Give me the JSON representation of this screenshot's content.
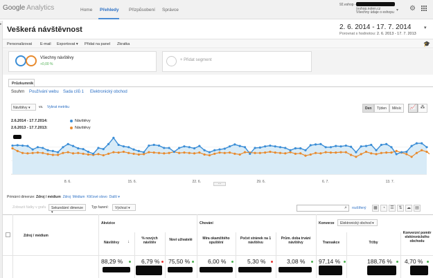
{
  "topbar": {
    "logo_g": "Google",
    "logo_a": "Analytics",
    "nav": [
      "Home",
      "Přehledy",
      "Přizpůsobení",
      "Správce"
    ],
    "account_email": "92.eshop -",
    "account_site": "(eshop.nolen.cz",
    "account_sub": "Všechny údaje o eshopu"
  },
  "header": {
    "title": "Veškerá návštěvnost",
    "date_range": "2. 6. 2014 - 17. 7. 2014",
    "compare_label": "Porovnat s hodnotou:",
    "compare_range": "2. 6. 2013 - 17. 7. 2013"
  },
  "toolbar": [
    "Personalizovat",
    "E-mail",
    "Exportovat ▾",
    "Přidat na panel",
    "Zkratka"
  ],
  "segments": {
    "seg1_label": "Všechny návštěvy",
    "seg1_sub": "+0,00 %",
    "seg2_label": "+ Přidat segment"
  },
  "explorer": {
    "tab": "Průzkumník",
    "subtabs": [
      "Souhrn",
      "Používání webu",
      "Sada cílů 1",
      "Elektronický obchod"
    ]
  },
  "chart_controls": {
    "metric": "Návštěvy",
    "vs": "vs.",
    "select_metric": "Vybrat metriku",
    "granularity": [
      "Den",
      "Týden",
      "Měsíc"
    ]
  },
  "legend": [
    {
      "date": "2.6.2014 - 17.7.2014:",
      "label": "Návštěvy",
      "color": "#3a8dd6"
    },
    {
      "date": "2.6.2013 - 17.7.2013:",
      "label": "Návštěvy",
      "color": "#e88a2d"
    }
  ],
  "chart_data": {
    "type": "line",
    "x_tick_labels": [
      "8. 6.",
      "15. 6.",
      "22. 6.",
      "29. 6.",
      "6. 7.",
      "13. 7."
    ],
    "series": [
      {
        "name": "Návštěvy",
        "color": "#3a8dd6",
        "values": [
          0.74,
          0.75,
          0.74,
          0.73,
          0.64,
          0.7,
          0.68,
          0.62,
          0.6,
          0.57,
          0.7,
          0.78,
          0.73,
          0.67,
          0.65,
          0.58,
          0.53,
          0.68,
          0.65,
          0.78,
          0.94,
          0.76,
          0.72,
          0.7,
          0.64,
          0.6,
          0.57,
          0.74,
          0.76,
          0.74,
          0.68,
          0.68,
          0.58,
          0.68,
          0.72,
          0.7,
          0.67,
          0.73,
          0.62,
          0.57,
          0.62,
          0.64,
          0.66,
          0.72,
          0.77,
          0.73,
          0.7,
          0.53,
          0.68,
          0.69,
          0.72,
          0.74,
          0.72,
          0.7,
          0.68,
          0.62,
          0.67,
          0.67,
          0.62,
          0.75,
          0.77,
          0.78,
          0.7,
          0.7,
          0.73,
          0.72,
          0.74,
          0.71,
          0.57,
          0.72,
          0.73,
          0.76,
          0.62,
          0.76,
          0.78,
          0.7,
          0.52,
          0.57,
          0.58,
          0.73,
          0.8,
          0.8,
          0.7
        ]
      },
      {
        "name": "Návštěvy",
        "color": "#e88a2d",
        "values": [
          0.67,
          0.6,
          0.55,
          0.54,
          0.55,
          0.56,
          0.55,
          0.52,
          0.5,
          0.5,
          0.55,
          0.57,
          0.54,
          0.55,
          0.53,
          0.51,
          0.5,
          0.52,
          0.49,
          0.53,
          0.57,
          0.56,
          0.58,
          0.55,
          0.53,
          0.51,
          0.52,
          0.57,
          0.56,
          0.55,
          0.54,
          0.55,
          0.58,
          0.55,
          0.56,
          0.55,
          0.54,
          0.56,
          0.51,
          0.49,
          0.53,
          0.56,
          0.55,
          0.56,
          0.53,
          0.51,
          0.57,
          0.56,
          0.55,
          0.55,
          0.56,
          0.58,
          0.56,
          0.55,
          0.54,
          0.57,
          0.53,
          0.54,
          0.48,
          0.51,
          0.55,
          0.54,
          0.57,
          0.56,
          0.56,
          0.57,
          0.57,
          0.5,
          0.45,
          0.52,
          0.58,
          0.54,
          0.52,
          0.55,
          0.56,
          0.56,
          0.6,
          0.56,
          0.52,
          0.45,
          0.55,
          0.62,
          0.58,
          0.48
        ]
      }
    ]
  },
  "dimension": {
    "primary_label": "Primární dimenze:",
    "primary_value": "Zdroj / médium",
    "options": [
      "Zdroj",
      "Médium",
      "Klíčové slovo",
      "Další ▾"
    ],
    "add_filter": "Zobrazit řádky v grafu",
    "secondary": "Sekundární dimenze ▾",
    "type_label": "Typ řazení:",
    "type_value": "Výchozí ▾",
    "advanced": "rozšířený"
  },
  "table": {
    "col_source": "Zdroj / médium",
    "group_acq": "Akvizice",
    "group_beh": "Chování",
    "group_conv": "Konverze",
    "conv_select": "Elektronický obchod",
    "headers": [
      "Návštěvy",
      "% nových návštěv",
      "Noví uživatelé",
      "Míra okamžitého opuštění",
      "Počet stránek na 1 návštěvu",
      "Prům. doba trvání návštěvy",
      "Transakce",
      "Tržby",
      "Konverzní poměr elektronického obchodu"
    ],
    "values": [
      "88,29 %",
      "6,79 %",
      "75,50 %",
      "6,00 %",
      "5,30 %",
      "3,08 %",
      "97,14 %",
      "188,76 %",
      "4,70 %"
    ]
  }
}
